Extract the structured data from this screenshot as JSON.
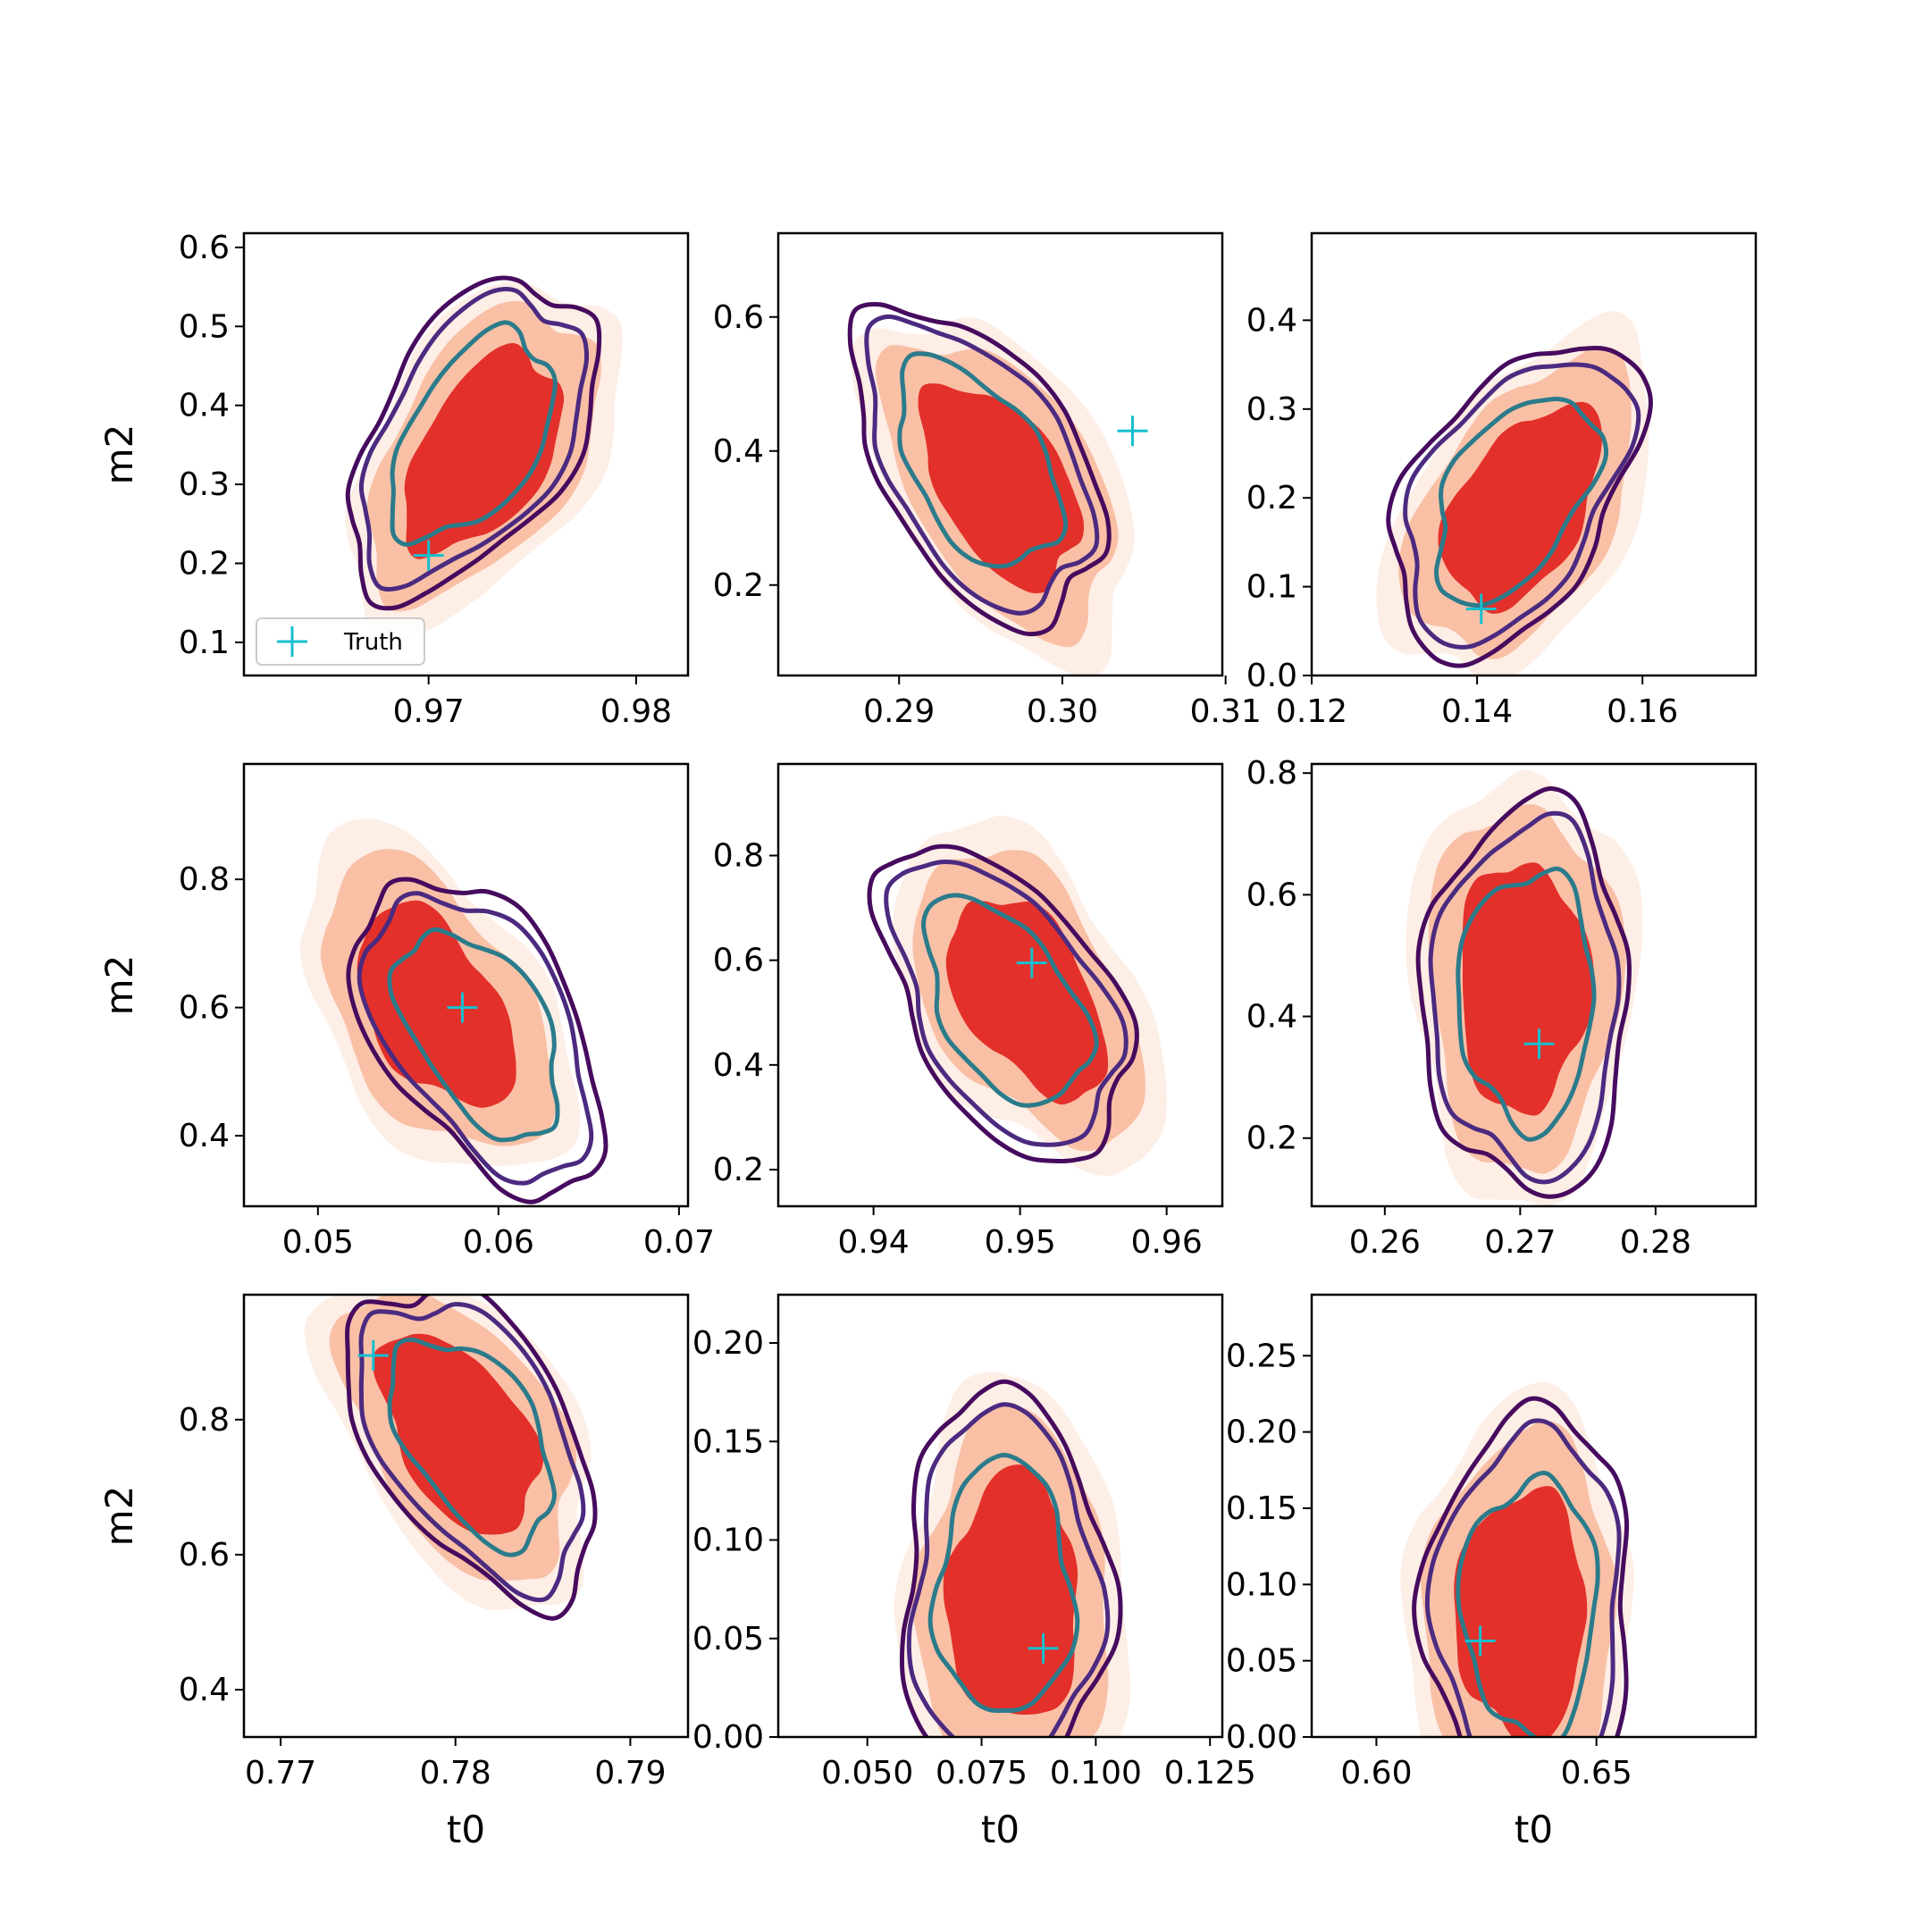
{
  "figure": {
    "xlabel": "t0",
    "ylabel": "m2",
    "legend_label": "Truth"
  },
  "colors": {
    "fill_outer": "#fdeee6",
    "fill_mid": "#f9c0a6",
    "fill_inner": "#e3302a",
    "contour_outer": "#460b5e",
    "contour_mid": "#4b2a80",
    "contour_inner": "#2b7b8b",
    "truth_marker": "#17bfcf"
  },
  "chart_data": [
    {
      "type": "contour",
      "xlabel": "",
      "ylabel": "m2",
      "xlim": [
        0.9611,
        0.9825
      ],
      "ylim": [
        0.058,
        0.618
      ],
      "xticks": [
        "0.97",
        "0.98"
      ],
      "xtick_values": [
        0.97,
        0.98
      ],
      "yticks": [
        "0.1",
        "0.2",
        "0.3",
        "0.4",
        "0.5",
        "0.6"
      ],
      "ytick_values": [
        0.1,
        0.2,
        0.3,
        0.4,
        0.5,
        0.6
      ],
      "truth": [
        0.97,
        0.21
      ],
      "contour_center": [
        0.9721,
        0.36
      ],
      "fill_center": [
        0.9726,
        0.34
      ],
      "legend": "lower left",
      "tilt": 1
    },
    {
      "type": "contour",
      "xlabel": "",
      "ylabel": "",
      "xlim": [
        0.2826,
        0.3098
      ],
      "ylim": [
        0.065,
        0.725
      ],
      "xticks": [
        "0.29",
        "0.30",
        "0.31"
      ],
      "xtick_values": [
        0.29,
        0.3,
        0.31
      ],
      "yticks": [
        "0.2",
        "0.4",
        "0.6"
      ],
      "ytick_values": [
        0.2,
        0.4,
        0.6
      ],
      "truth": [
        0.3043,
        0.43
      ],
      "contour_center": [
        0.2948,
        0.38
      ],
      "fill_center": [
        0.2962,
        0.35
      ],
      "tilt": -1
    },
    {
      "type": "contour",
      "xlabel": "",
      "ylabel": "",
      "xlim": [
        0.12,
        0.1737
      ],
      "ylim": [
        0.0,
        0.498
      ],
      "xticks": [
        "0.12",
        "0.14",
        "0.16"
      ],
      "xtick_values": [
        0.12,
        0.14,
        0.16
      ],
      "yticks": [
        "0.0",
        "0.1",
        "0.2",
        "0.3",
        "0.4"
      ],
      "ytick_values": [
        0.0,
        0.1,
        0.2,
        0.3,
        0.4
      ],
      "truth": [
        0.1405,
        0.075
      ],
      "contour_center": [
        0.1445,
        0.2
      ],
      "fill_center": [
        0.1455,
        0.19
      ],
      "tilt": 1
    },
    {
      "type": "contour",
      "xlabel": "",
      "ylabel": "m2",
      "xlim": [
        0.0459,
        0.0705
      ],
      "ylim": [
        0.29,
        0.98
      ],
      "xticks": [
        "0.05",
        "0.06",
        "0.07"
      ],
      "xtick_values": [
        0.05,
        0.06,
        0.07
      ],
      "yticks": [
        "0.4",
        "0.6",
        "0.8"
      ],
      "ytick_values": [
        0.4,
        0.6,
        0.8
      ],
      "truth": [
        0.058,
        0.6
      ],
      "contour_center": [
        0.059,
        0.56
      ],
      "fill_center": [
        0.0565,
        0.6
      ],
      "tilt": -1
    },
    {
      "type": "contour",
      "xlabel": "",
      "ylabel": "",
      "xlim": [
        0.9335,
        0.9638
      ],
      "ylim": [
        0.13,
        0.975
      ],
      "xticks": [
        "0.94",
        "0.95",
        "0.96"
      ],
      "xtick_values": [
        0.94,
        0.95,
        0.96
      ],
      "yticks": [
        "0.2",
        "0.4",
        "0.6",
        "0.8"
      ],
      "ytick_values": [
        0.2,
        0.4,
        0.6,
        0.8
      ],
      "truth": [
        0.9508,
        0.595
      ],
      "contour_center": [
        0.949,
        0.52
      ],
      "fill_center": [
        0.9505,
        0.53
      ],
      "tilt": -1
    },
    {
      "type": "contour",
      "xlabel": "",
      "ylabel": "",
      "xlim": [
        0.2546,
        0.2874
      ],
      "ylim": [
        0.088,
        0.815
      ],
      "xticks": [
        "0.26",
        "0.27",
        "0.28"
      ],
      "xtick_values": [
        0.26,
        0.27,
        0.28
      ],
      "yticks": [
        "0.2",
        "0.4",
        "0.6",
        "0.8"
      ],
      "ytick_values": [
        0.2,
        0.4,
        0.6,
        0.8
      ],
      "truth": [
        0.2714,
        0.355
      ],
      "contour_center": [
        0.2705,
        0.43
      ],
      "fill_center": [
        0.2702,
        0.45
      ],
      "tilt": 0
    },
    {
      "type": "contour",
      "xlabel": "t0",
      "ylabel": "m2",
      "xlim": [
        0.7679,
        0.7933
      ],
      "ylim": [
        0.33,
        0.985
      ],
      "xticks": [
        "0.77",
        "0.78",
        "0.79"
      ],
      "xtick_values": [
        0.77,
        0.78,
        0.79
      ],
      "yticks": [
        "0.4",
        "0.6",
        "0.8"
      ],
      "ytick_values": [
        0.4,
        0.6,
        0.8
      ],
      "truth": [
        0.7753,
        0.895
      ],
      "contour_center": [
        0.781,
        0.77
      ],
      "fill_center": [
        0.7802,
        0.78
      ],
      "tilt": -1
    },
    {
      "type": "contour",
      "xlabel": "t0",
      "ylabel": "",
      "xlim": [
        0.0305,
        0.1277
      ],
      "ylim": [
        0.0,
        0.2245
      ],
      "xticks": [
        "0.050",
        "0.075",
        "0.100",
        "0.125"
      ],
      "xtick_values": [
        0.05,
        0.075,
        0.1,
        0.125
      ],
      "yticks": [
        "0.00",
        "0.05",
        "0.10",
        "0.15",
        "0.20"
      ],
      "ytick_values": [
        0.0,
        0.05,
        0.1,
        0.15,
        0.2
      ],
      "truth": [
        0.0885,
        0.045
      ],
      "contour_center": [
        0.08,
        0.075
      ],
      "fill_center": [
        0.082,
        0.07
      ],
      "tilt": 0
    },
    {
      "type": "contour",
      "xlabel": "t0",
      "ylabel": "",
      "xlim": [
        0.5853,
        0.6862
      ],
      "ylim": [
        0.0,
        0.29
      ],
      "xticks": [
        "0.60",
        "0.65"
      ],
      "xtick_values": [
        0.6,
        0.65
      ],
      "yticks": [
        "0.00",
        "0.05",
        "0.10",
        "0.15",
        "0.20",
        "0.25"
      ],
      "ytick_values": [
        0.0,
        0.05,
        0.1,
        0.15,
        0.2,
        0.25
      ],
      "truth": [
        0.6236,
        0.063
      ],
      "contour_center": [
        0.635,
        0.085
      ],
      "fill_center": [
        0.633,
        0.08
      ],
      "tilt": 0
    }
  ]
}
